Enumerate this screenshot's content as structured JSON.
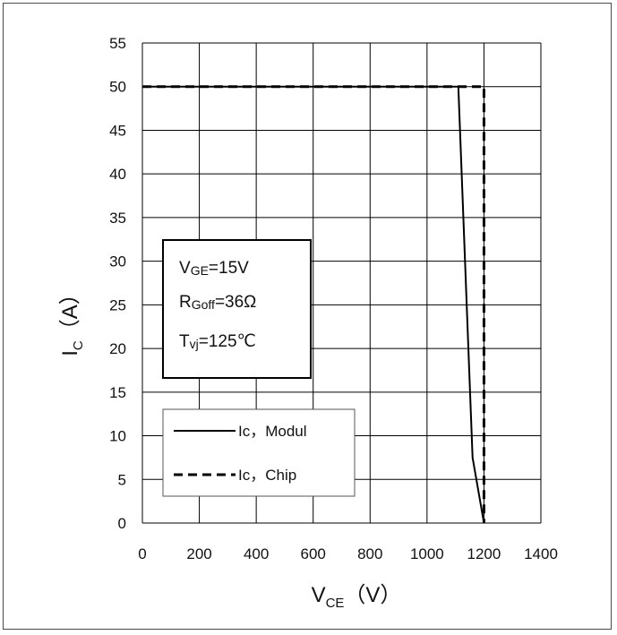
{
  "chart_data": {
    "type": "line",
    "xlabel": {
      "main": "V",
      "sub": "CE",
      "unit": "（V）"
    },
    "ylabel": {
      "main": "I",
      "sub": "C",
      "unit": "（A）"
    },
    "xlim": [
      0,
      1400
    ],
    "ylim": [
      0,
      55
    ],
    "xticks": [
      0,
      200,
      400,
      600,
      800,
      1000,
      1200,
      1400
    ],
    "yticks": [
      0,
      5,
      10,
      15,
      20,
      25,
      30,
      35,
      40,
      45,
      50,
      55
    ],
    "grid": true,
    "series": [
      {
        "name": "Ic，Modul",
        "style": "solid",
        "color": "#000000",
        "points": [
          [
            0,
            50
          ],
          [
            1110,
            50
          ],
          [
            1160,
            7.5
          ],
          [
            1200,
            0
          ]
        ]
      },
      {
        "name": "Ic，Chip",
        "style": "dashed",
        "color": "#000000",
        "points": [
          [
            0,
            50
          ],
          [
            1200,
            50
          ],
          [
            1200,
            0
          ]
        ]
      }
    ],
    "annotation": {
      "lines": [
        {
          "main": "V",
          "sub": "GE",
          "rest": "=15V"
        },
        {
          "main": "R",
          "sub": "Goff",
          "rest": "=36Ω"
        },
        {
          "main": "T",
          "sub": "vj",
          "rest": "=125℃"
        }
      ]
    },
    "legend": {
      "placement": "lower-left"
    }
  }
}
